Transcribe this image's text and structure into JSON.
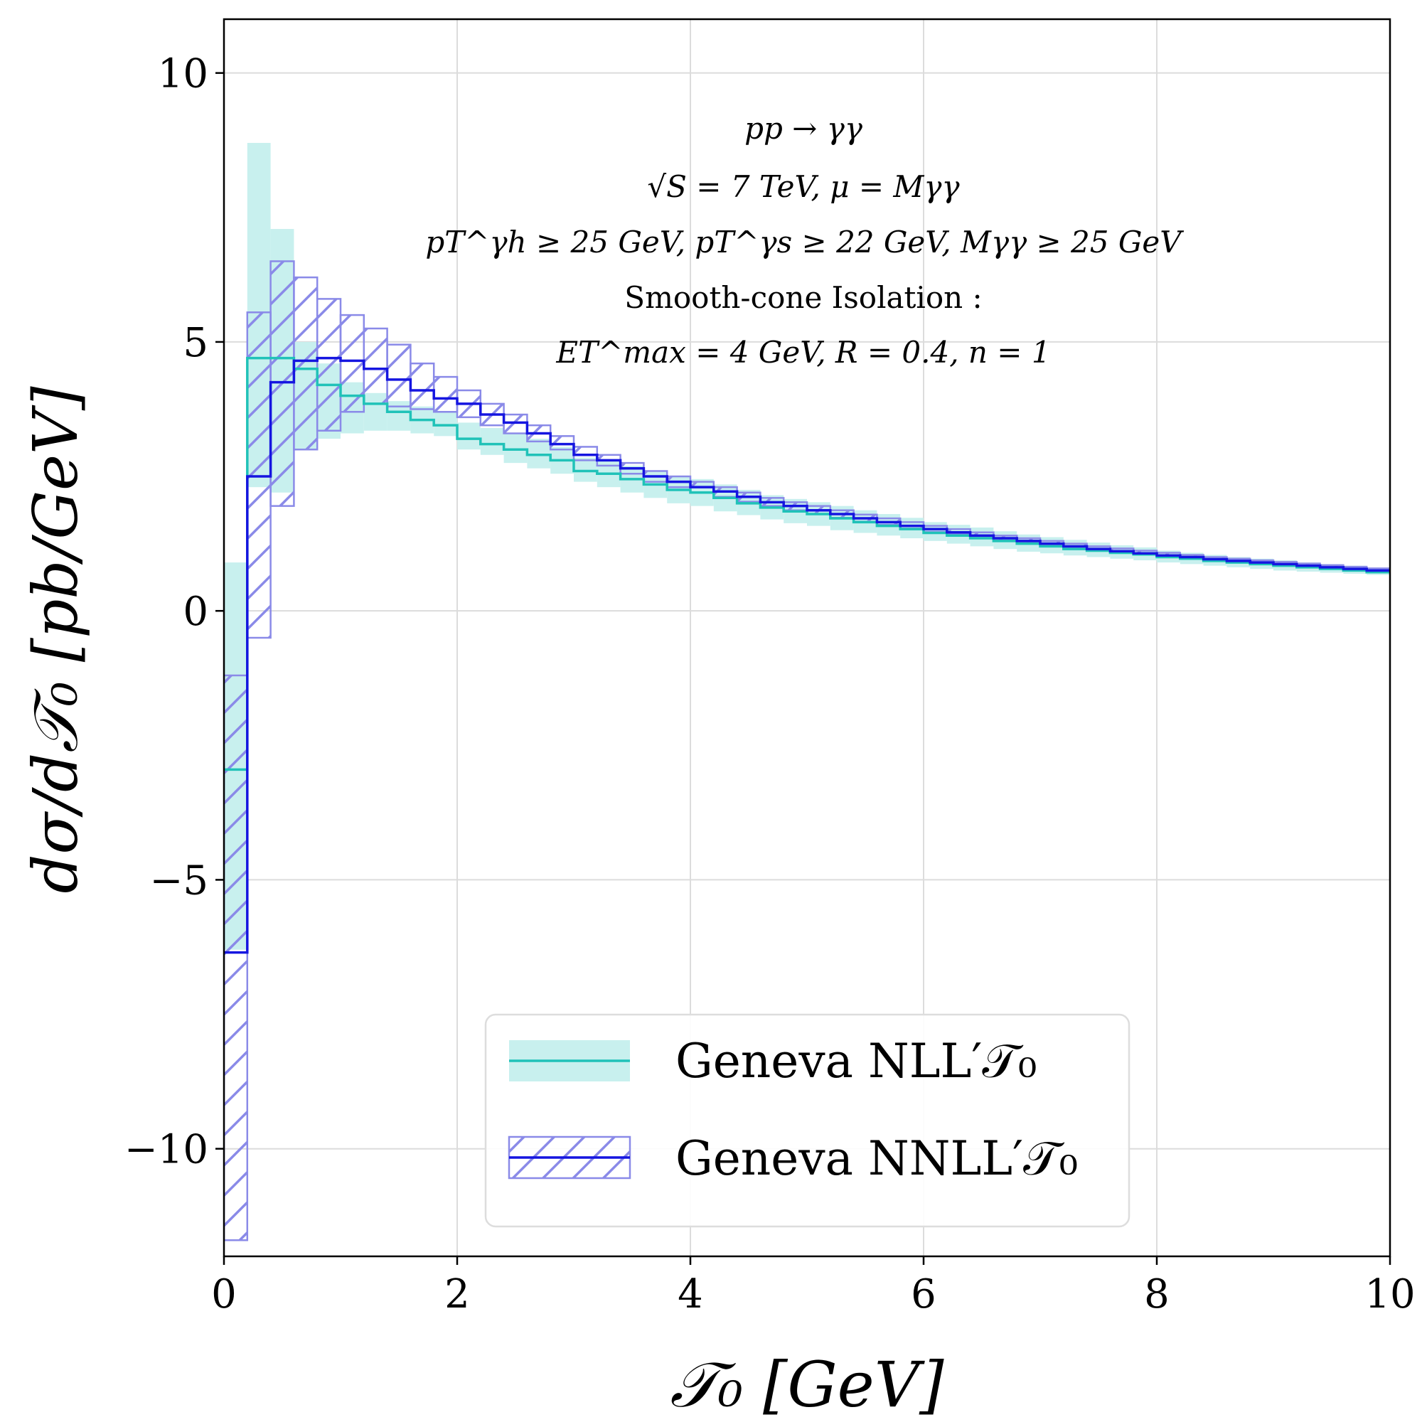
{
  "chart_data": {
    "type": "step",
    "title": "",
    "xlabel": "𝒯₀   [GeV]",
    "ylabel": "dσ/d𝒯₀   [pb/GeV]",
    "xlim": [
      0,
      10
    ],
    "ylim": [
      -12,
      11
    ],
    "x_ticks": [
      0,
      2,
      4,
      6,
      8,
      10
    ],
    "x_tick_labels": [
      "0",
      "2",
      "4",
      "6",
      "8",
      "10"
    ],
    "y_ticks": [
      10,
      5,
      0,
      -5,
      -10
    ],
    "y_tick_labels": [
      "10",
      "5",
      "0",
      "−5",
      "−10"
    ],
    "grid": true,
    "annotation_lines": [
      "pp → γγ",
      "√S = 7 TeV,  μ = Mγγ",
      "pT^γh ≥ 25 GeV,   pT^γs ≥ 22 GeV,   Mγγ ≥ 25 GeV",
      "Smooth-cone Isolation :",
      "ET^max = 4 GeV,   R = 0.4,   n = 1"
    ],
    "legend": {
      "position": "lower-center",
      "entries": [
        "Geneva NLL′𝒯₀",
        "Geneva NNLL′𝒯₀"
      ]
    },
    "colors": {
      "nll": "#20c2b8",
      "nll_band": "#c8f0ee",
      "nnll": "#1515e0",
      "nnll_band": "#8a8ae8"
    },
    "series": [
      {
        "name": "Geneva NLL′",
        "style": "filled-band",
        "bins": [
          0,
          0.2,
          0.4,
          0.6,
          0.8,
          1.0,
          1.2,
          1.4,
          1.6,
          1.8,
          2.0,
          2.2,
          2.4,
          2.6,
          2.8,
          3.0,
          3.2,
          3.4,
          3.6,
          3.8,
          4.0,
          4.2,
          4.4,
          4.6,
          4.8,
          5.0,
          5.2,
          5.4,
          5.6,
          5.8,
          6.0,
          6.2,
          6.4,
          6.6,
          6.8,
          7.0,
          7.2,
          7.4,
          7.6,
          7.8,
          8.0,
          8.2,
          8.4,
          8.6,
          8.8,
          9.0,
          9.2,
          9.4,
          9.6,
          9.8,
          10.0
        ],
        "central": [
          -2.95,
          4.7,
          4.7,
          4.5,
          4.2,
          4.0,
          3.85,
          3.7,
          3.55,
          3.45,
          3.2,
          3.1,
          3.0,
          2.9,
          2.8,
          2.6,
          2.55,
          2.45,
          2.35,
          2.25,
          2.2,
          2.1,
          2.0,
          1.92,
          1.85,
          1.8,
          1.72,
          1.65,
          1.58,
          1.52,
          1.45,
          1.4,
          1.35,
          1.3,
          1.25,
          1.2,
          1.15,
          1.12,
          1.08,
          1.05,
          1.0,
          0.97,
          0.93,
          0.9,
          0.87,
          0.84,
          0.81,
          0.78,
          0.75,
          0.72
        ],
        "lower": [
          -6.3,
          2.3,
          2.2,
          3.0,
          3.2,
          3.3,
          3.35,
          3.35,
          3.3,
          3.25,
          3.0,
          2.9,
          2.75,
          2.65,
          2.55,
          2.4,
          2.3,
          2.2,
          2.1,
          2.0,
          1.95,
          1.85,
          1.78,
          1.7,
          1.63,
          1.58,
          1.5,
          1.45,
          1.4,
          1.35,
          1.3,
          1.25,
          1.2,
          1.15,
          1.1,
          1.07,
          1.03,
          1.0,
          0.97,
          0.94,
          0.9,
          0.87,
          0.84,
          0.81,
          0.78,
          0.75,
          0.73,
          0.71,
          0.69,
          0.67
        ],
        "upper": [
          0.9,
          8.7,
          7.1,
          5.0,
          4.6,
          4.25,
          4.05,
          3.9,
          3.8,
          3.7,
          3.5,
          3.4,
          3.3,
          3.2,
          3.05,
          2.85,
          2.8,
          2.7,
          2.6,
          2.5,
          2.45,
          2.35,
          2.25,
          2.15,
          2.08,
          2.02,
          1.95,
          1.87,
          1.8,
          1.73,
          1.65,
          1.6,
          1.55,
          1.48,
          1.42,
          1.37,
          1.32,
          1.27,
          1.22,
          1.18,
          1.12,
          1.08,
          1.04,
          1.0,
          0.97,
          0.94,
          0.9,
          0.87,
          0.84,
          0.8
        ]
      },
      {
        "name": "Geneva NNLL′",
        "style": "hatched-band",
        "bins": [
          0,
          0.2,
          0.4,
          0.6,
          0.8,
          1.0,
          1.2,
          1.4,
          1.6,
          1.8,
          2.0,
          2.2,
          2.4,
          2.6,
          2.8,
          3.0,
          3.2,
          3.4,
          3.6,
          3.8,
          4.0,
          4.2,
          4.4,
          4.6,
          4.8,
          5.0,
          5.2,
          5.4,
          5.6,
          5.8,
          6.0,
          6.2,
          6.4,
          6.6,
          6.8,
          7.0,
          7.2,
          7.4,
          7.6,
          7.8,
          8.0,
          8.2,
          8.4,
          8.6,
          8.8,
          9.0,
          9.2,
          9.4,
          9.6,
          9.8,
          10.0
        ],
        "central": [
          -6.35,
          2.5,
          4.25,
          4.65,
          4.7,
          4.65,
          4.5,
          4.3,
          4.1,
          3.95,
          3.85,
          3.65,
          3.5,
          3.3,
          3.1,
          2.9,
          2.8,
          2.65,
          2.5,
          2.4,
          2.3,
          2.22,
          2.12,
          2.02,
          1.95,
          1.87,
          1.8,
          1.72,
          1.65,
          1.58,
          1.52,
          1.46,
          1.4,
          1.35,
          1.3,
          1.25,
          1.2,
          1.15,
          1.11,
          1.07,
          1.03,
          1.0,
          0.96,
          0.93,
          0.9,
          0.87,
          0.84,
          0.81,
          0.78,
          0.75
        ],
        "lower": [
          -11.7,
          -0.5,
          1.95,
          3.0,
          3.35,
          3.7,
          3.85,
          3.8,
          3.75,
          3.7,
          3.6,
          3.45,
          3.3,
          3.15,
          3.0,
          2.8,
          2.7,
          2.55,
          2.4,
          2.3,
          2.2,
          2.12,
          2.03,
          1.95,
          1.87,
          1.8,
          1.73,
          1.66,
          1.6,
          1.53,
          1.47,
          1.42,
          1.36,
          1.31,
          1.26,
          1.22,
          1.17,
          1.13,
          1.09,
          1.05,
          1.01,
          0.98,
          0.95,
          0.92,
          0.89,
          0.86,
          0.83,
          0.8,
          0.77,
          0.74
        ],
        "upper": [
          -1.2,
          5.55,
          6.5,
          6.2,
          5.8,
          5.5,
          5.25,
          4.95,
          4.6,
          4.35,
          4.1,
          3.85,
          3.65,
          3.45,
          3.25,
          3.05,
          2.9,
          2.75,
          2.6,
          2.5,
          2.4,
          2.3,
          2.2,
          2.1,
          2.02,
          1.95,
          1.87,
          1.79,
          1.72,
          1.65,
          1.58,
          1.52,
          1.46,
          1.4,
          1.35,
          1.3,
          1.25,
          1.2,
          1.16,
          1.12,
          1.08,
          1.04,
          1.0,
          0.97,
          0.94,
          0.91,
          0.88,
          0.85,
          0.82,
          0.79
        ]
      }
    ]
  }
}
